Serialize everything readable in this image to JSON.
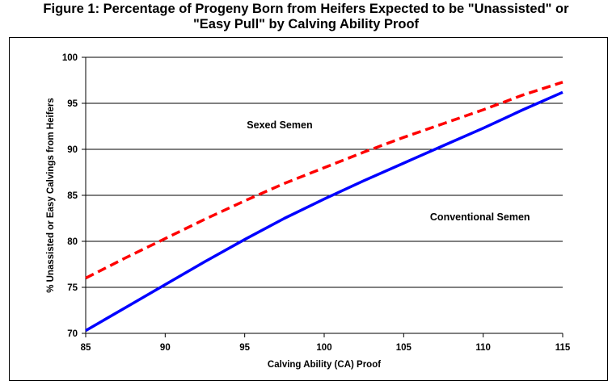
{
  "figure": {
    "title_line1": "Figure 1: Percentage of Progeny Born from Heifers Expected to be \"Unassisted\" or",
    "title_line2": "\"Easy Pull\" by Calving Ability Proof"
  },
  "chart_data": {
    "type": "line",
    "xlabel": "Calving Ability (CA) Proof",
    "ylabel": "% Unassisted or Easy Calvings from Heifers",
    "xlim": [
      85,
      115
    ],
    "ylim": [
      70,
      100
    ],
    "xticks": [
      85,
      90,
      95,
      100,
      105,
      110,
      115
    ],
    "yticks": [
      70,
      75,
      80,
      85,
      90,
      95,
      100
    ],
    "grid": "horizontal",
    "x": [
      85,
      87.5,
      90,
      92.5,
      95,
      97.5,
      100,
      102.5,
      105,
      107.5,
      110,
      112.5,
      115
    ],
    "series": [
      {
        "name": "Sexed Semen",
        "color": "#ff0000",
        "style": "dashed",
        "values": [
          76.0,
          78.2,
          80.3,
          82.4,
          84.4,
          86.3,
          88.0,
          89.7,
          91.3,
          92.8,
          94.3,
          95.9,
          97.3
        ]
      },
      {
        "name": "Conventional Semen",
        "color": "#0000ff",
        "style": "solid",
        "values": [
          70.3,
          72.8,
          75.3,
          77.8,
          80.2,
          82.5,
          84.6,
          86.6,
          88.5,
          90.4,
          92.3,
          94.3,
          96.2
        ]
      }
    ]
  }
}
